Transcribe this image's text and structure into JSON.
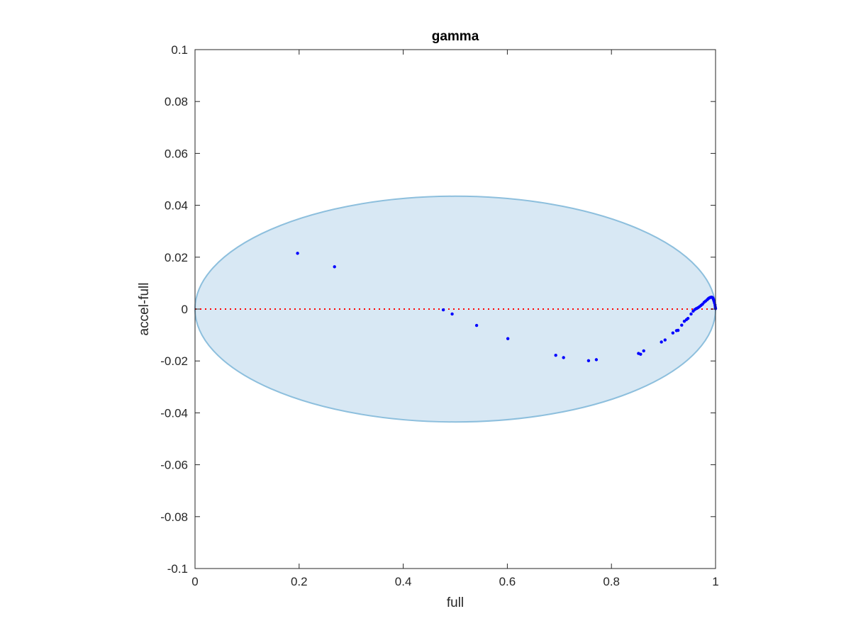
{
  "chart_data": {
    "type": "scatter",
    "title": "gamma",
    "xlabel": "full",
    "ylabel": "accel-full",
    "xlim": [
      0,
      1
    ],
    "ylim": [
      -0.1,
      0.1
    ],
    "xticks": [
      0,
      0.2,
      0.4,
      0.6,
      0.8,
      1
    ],
    "xtick_labels": [
      "0",
      "0.2",
      "0.4",
      "0.6",
      "0.8",
      "1"
    ],
    "yticks": [
      -0.1,
      -0.08,
      -0.06,
      -0.04,
      -0.02,
      0,
      0.02,
      0.04,
      0.06,
      0.08,
      0.1
    ],
    "ytick_labels": [
      "-0.1",
      "-0.08",
      "-0.06",
      "-0.04",
      "-0.02",
      "0",
      "0.02",
      "0.04",
      "0.06",
      "0.08",
      "0.1"
    ],
    "grid": false,
    "reference_line": {
      "y": 0,
      "style": "dotted",
      "color": "#ff0000"
    },
    "ellipse": {
      "center_x": 0.5,
      "center_y": 0,
      "radius_x": 0.5,
      "radius_y": 0.0435,
      "fill": "#d8e8f4",
      "stroke": "#8dbfdd"
    },
    "marker_color": "#0000ff",
    "series": [
      {
        "points": [
          [
            0.197,
            0.0215
          ],
          [
            0.268,
            0.0163
          ],
          [
            0.477,
            -0.0003
          ],
          [
            0.494,
            -0.0019
          ],
          [
            0.541,
            -0.0063
          ],
          [
            0.601,
            -0.0114
          ],
          [
            0.693,
            -0.0178
          ],
          [
            0.708,
            -0.0187
          ],
          [
            0.756,
            -0.0199
          ],
          [
            0.771,
            -0.0195
          ],
          [
            0.852,
            -0.0171
          ],
          [
            0.856,
            -0.0174
          ],
          [
            0.862,
            -0.0161
          ],
          [
            0.896,
            -0.0127
          ],
          [
            0.903,
            -0.0119
          ],
          [
            0.918,
            -0.0092
          ],
          [
            0.925,
            -0.0083
          ],
          [
            0.928,
            -0.0082
          ],
          [
            0.935,
            -0.0062
          ],
          [
            0.94,
            -0.0047
          ],
          [
            0.944,
            -0.0041
          ],
          [
            0.947,
            -0.0036
          ],
          [
            0.953,
            -0.0019
          ],
          [
            0.957,
            -0.0008
          ],
          [
            0.96,
            -0.0002
          ],
          [
            0.963,
            0.0002
          ],
          [
            0.966,
            0.0005
          ],
          [
            0.969,
            0.0009
          ],
          [
            0.972,
            0.0014
          ],
          [
            0.975,
            0.0019
          ],
          [
            0.978,
            0.0026
          ],
          [
            0.981,
            0.0031
          ],
          [
            0.984,
            0.0036
          ],
          [
            0.986,
            0.004
          ],
          [
            0.988,
            0.0043
          ],
          [
            0.99,
            0.0045
          ],
          [
            0.992,
            0.0046
          ],
          [
            0.994,
            0.0045
          ],
          [
            0.995,
            0.0042
          ],
          [
            0.996,
            0.0037
          ],
          [
            0.997,
            0.0031
          ],
          [
            0.998,
            0.0024
          ],
          [
            0.999,
            0.0016
          ],
          [
            0.9995,
            0.0008
          ],
          [
            1.0,
            0.0002
          ]
        ]
      }
    ]
  }
}
